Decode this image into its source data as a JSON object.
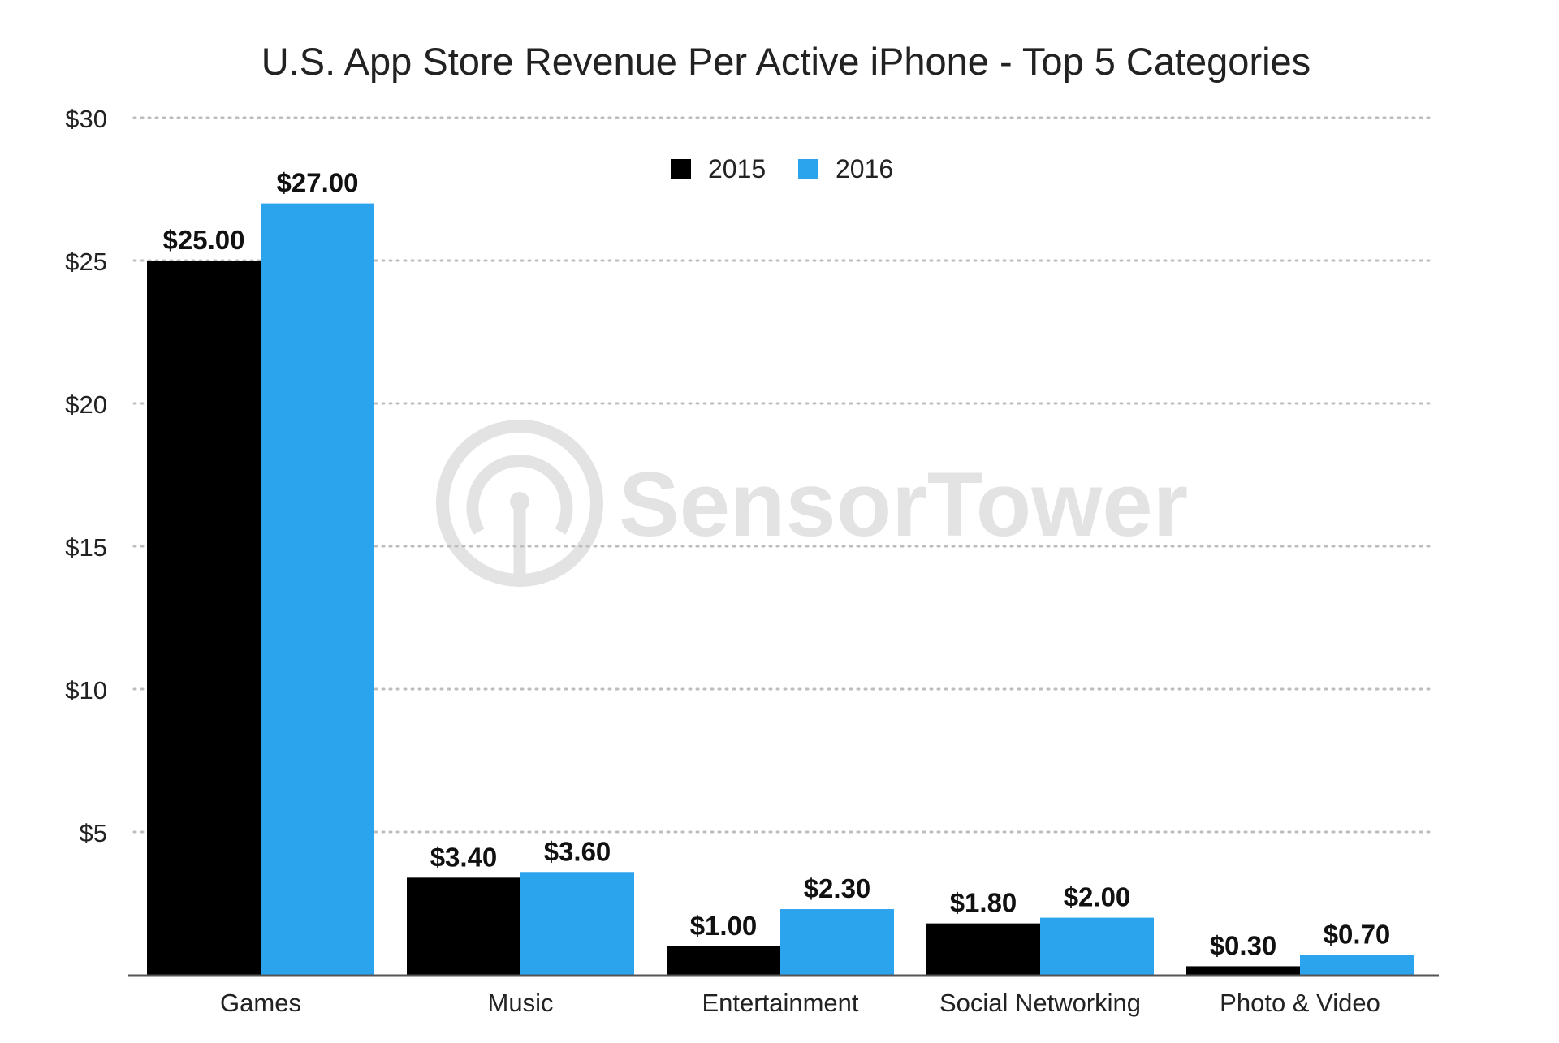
{
  "chart_data": {
    "type": "bar",
    "title": "U.S. App Store Revenue Per Active iPhone - Top 5 Categories",
    "xlabel": "",
    "ylabel": "",
    "ylim": [
      0,
      30
    ],
    "yticks": [
      5,
      10,
      15,
      20,
      25,
      30
    ],
    "ytick_labels": [
      "$5",
      "$10",
      "$15",
      "$20",
      "$25",
      "$30"
    ],
    "grid": true,
    "legend_position": "top-center",
    "categories": [
      "Games",
      "Music",
      "Entertainment",
      "Social Networking",
      "Photo & Video"
    ],
    "series": [
      {
        "name": "2015",
        "color": "#000000",
        "values": [
          25.0,
          3.4,
          1.0,
          1.8,
          0.3
        ],
        "labels": [
          "$25.00",
          "$3.40",
          "$1.00",
          "$1.80",
          "$0.30"
        ]
      },
      {
        "name": "2016",
        "color": "#2ba3ed",
        "values": [
          27.0,
          3.6,
          2.3,
          2.0,
          0.7
        ],
        "labels": [
          "$27.00",
          "$3.60",
          "$2.30",
          "$2.00",
          "$0.70"
        ]
      }
    ],
    "watermark": "SensorTower"
  }
}
